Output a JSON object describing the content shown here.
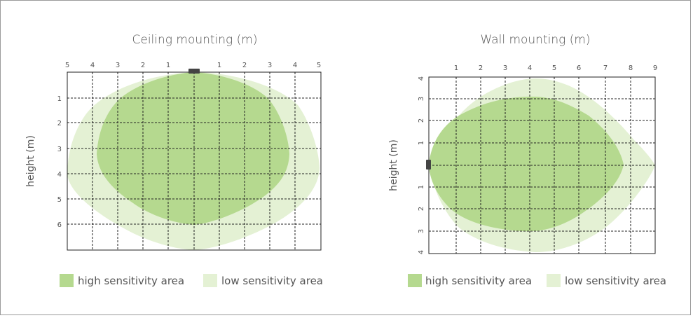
{
  "colors": {
    "high": "#b5d98f",
    "low": "#e4f1d4",
    "grid": "#222222",
    "sensor": "#444444",
    "text": "#555555"
  },
  "ceiling": {
    "title": "Ceiling mounting (m)",
    "ylabel": "height (m)",
    "x_ticks": [
      "5",
      "4",
      "3",
      "2",
      "1",
      "1",
      "2",
      "3",
      "4",
      "5"
    ],
    "y_ticks": [
      "1",
      "2",
      "3",
      "4",
      "5",
      "6"
    ]
  },
  "wall": {
    "title": "Wall mounting (m)",
    "ylabel": "height (m)",
    "x_ticks": [
      "1",
      "2",
      "3",
      "4",
      "5",
      "6",
      "7",
      "8",
      "9"
    ],
    "y_ticks": [
      "4",
      "3",
      "2",
      "1",
      "1",
      "2",
      "3",
      "4"
    ]
  },
  "legend": {
    "high_label": "high sensitivity area",
    "low_label": "low sensitivity area"
  }
}
